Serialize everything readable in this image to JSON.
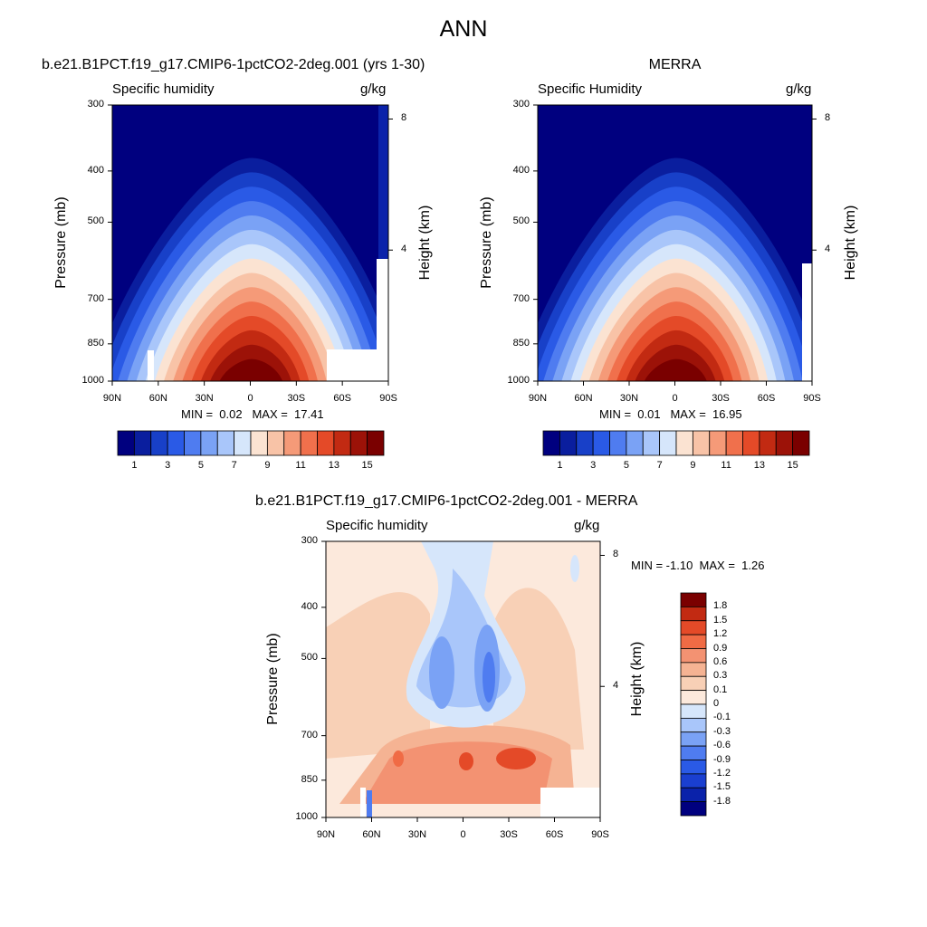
{
  "page": {
    "title": "ANN"
  },
  "colors": {
    "scale_a": [
      "#00007f",
      "#0a1e9e",
      "#1840c8",
      "#2a5ae6",
      "#4f7cf0",
      "#7aa2f5",
      "#a9c6fa",
      "#d6e6fb",
      "#fbe3d2",
      "#f8c3a7",
      "#f59a78",
      "#f0704c",
      "#e44a28",
      "#c22a12",
      "#9c1208",
      "#7a0000"
    ],
    "scale_d": [
      "#00007f",
      "#0a22aa",
      "#1a3fd0",
      "#2a5ae6",
      "#4f7cf0",
      "#7aa2f5",
      "#a9c6fa",
      "#d6e6fb",
      "#fce9dc",
      "#f8d0b6",
      "#f5b393",
      "#f39272",
      "#f06b45",
      "#e44a28",
      "#c22a12",
      "#7a0000"
    ]
  },
  "chart_data": [
    {
      "type": "heatmap",
      "title": "b.e21.B1PCT.f19_g17.CMIP6-1pctCO2-2deg.001 (yrs 1-30)",
      "left_label": "Specific humidity",
      "units": "g/kg",
      "xlabel": "",
      "ylabel": "Pressure (mb)",
      "y2label": "Height (km)",
      "xticks": [
        "90N",
        "60N",
        "30N",
        "0",
        "30S",
        "60S",
        "90S"
      ],
      "yticks": [
        "300",
        "400",
        "500",
        "700",
        "850",
        "1000"
      ],
      "y2ticks": [
        "8",
        "4"
      ],
      "ylim": [
        1000,
        300
      ],
      "stats": {
        "min_label": "MIN =",
        "min": "0.02",
        "max_label": "MAX =",
        "max": "17.41"
      },
      "levels": [
        "1",
        "3",
        "5",
        "7",
        "9",
        "11",
        "13",
        "15"
      ]
    },
    {
      "type": "heatmap",
      "title": "MERRA",
      "left_label": "Specific Humidity",
      "units": "g/kg",
      "xlabel": "",
      "ylabel": "Pressure (mb)",
      "y2label": "Height (km)",
      "xticks": [
        "90N",
        "60N",
        "30N",
        "0",
        "30S",
        "60S",
        "90S"
      ],
      "yticks": [
        "300",
        "400",
        "500",
        "700",
        "850",
        "1000"
      ],
      "y2ticks": [
        "8",
        "4"
      ],
      "ylim": [
        1000,
        300
      ],
      "stats": {
        "min_label": "MIN =",
        "min": "0.01",
        "max_label": "MAX =",
        "max": "16.95"
      },
      "levels": [
        "1",
        "3",
        "5",
        "7",
        "9",
        "11",
        "13",
        "15"
      ]
    },
    {
      "type": "heatmap",
      "title": "b.e21.B1PCT.f19_g17.CMIP6-1pctCO2-2deg.001 - MERRA",
      "left_label": "Specific humidity",
      "units": "g/kg",
      "xlabel": "",
      "ylabel": "Pressure (mb)",
      "y2label": "Height (km)",
      "xticks": [
        "90N",
        "60N",
        "30N",
        "0",
        "30S",
        "60S",
        "90S"
      ],
      "yticks": [
        "300",
        "400",
        "500",
        "700",
        "850",
        "1000"
      ],
      "y2ticks": [
        "8",
        "4"
      ],
      "ylim": [
        1000,
        300
      ],
      "stats": {
        "min_label": "MIN =",
        "min": "-1.10",
        "max_label": "MAX =",
        "max": "1.26"
      },
      "levels": [
        "1.8",
        "1.5",
        "1.2",
        "0.9",
        "0.6",
        "0.3",
        "0.1",
        "0",
        "-0.1",
        "-0.3",
        "-0.6",
        "-0.9",
        "-1.2",
        "-1.5",
        "-1.8"
      ]
    }
  ]
}
